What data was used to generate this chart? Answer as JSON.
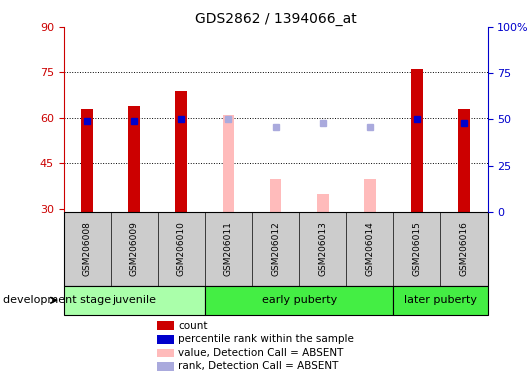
{
  "title": "GDS2862 / 1394066_at",
  "samples": [
    "GSM206008",
    "GSM206009",
    "GSM206010",
    "GSM206011",
    "GSM206012",
    "GSM206013",
    "GSM206014",
    "GSM206015",
    "GSM206016"
  ],
  "count_values": [
    63,
    64,
    69,
    null,
    null,
    null,
    null,
    76,
    63
  ],
  "percentile_rank": [
    49,
    49,
    50,
    null,
    null,
    null,
    null,
    50,
    48
  ],
  "absent_value": [
    null,
    null,
    null,
    61,
    40,
    35,
    40,
    null,
    null
  ],
  "absent_rank": [
    null,
    null,
    null,
    50,
    46,
    48,
    46,
    null,
    null
  ],
  "ylim_left": [
    29,
    90
  ],
  "ylim_right": [
    0,
    100
  ],
  "yticks_left": [
    30,
    45,
    60,
    75,
    90
  ],
  "yticks_right": [
    0,
    25,
    50,
    75,
    100
  ],
  "yticklabels_right": [
    "0",
    "25",
    "50",
    "75",
    "100%"
  ],
  "gridlines": [
    45,
    60,
    75
  ],
  "group_starts": [
    0,
    3,
    7
  ],
  "group_ends": [
    3,
    7,
    9
  ],
  "group_labels": [
    "juvenile",
    "early puberty",
    "later puberty"
  ],
  "group_colors": [
    "#aaffaa",
    "#44ee44",
    "#44ee44"
  ],
  "bar_width": 0.25,
  "count_color": "#cc0000",
  "rank_color": "#0000cc",
  "absent_value_color": "#ffbbbb",
  "absent_rank_color": "#aaaadd",
  "bg_color": "#ffffff",
  "tick_area_bg": "#cccccc",
  "legend_items": [
    {
      "label": "count",
      "color": "#cc0000"
    },
    {
      "label": "percentile rank within the sample",
      "color": "#0000cc"
    },
    {
      "label": "value, Detection Call = ABSENT",
      "color": "#ffbbbb"
    },
    {
      "label": "rank, Detection Call = ABSENT",
      "color": "#aaaadd"
    }
  ],
  "development_stage_label": "development stage",
  "left_label_color": "#cc0000",
  "right_label_color": "#0000cc"
}
